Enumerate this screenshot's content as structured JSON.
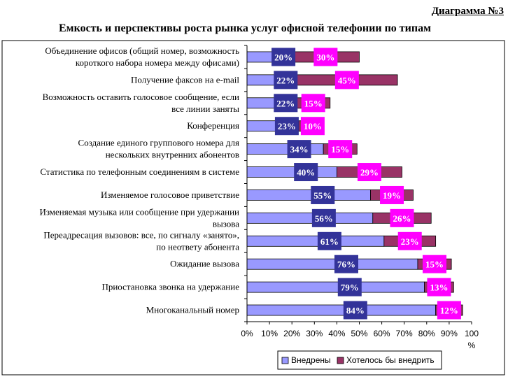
{
  "header": {
    "chart_number": "Диаграмма №3",
    "title": "Емкость и перспективы роста рынка услуг офисной телефонии по типам"
  },
  "chart_data": {
    "type": "bar",
    "orientation": "horizontal",
    "stacked": true,
    "categories": [
      "Объединение офисов (общий номер, возможность короткого набора номера между офисами)",
      "Получение факсов на e-mail",
      "Возможность оставить голосовое сообщение, если все линии заняты",
      "Конференция",
      "Создание единого группового номера для нескольких внутренних абонентов",
      "Статистика по телефонным соединениям в системе",
      "Изменяемое голосовое приветствие",
      "Изменяемая музыка или сообщение при удержании вызова",
      "Переадресация вызовов: все, по сигналу «занято», по неответу абонента",
      "Ожидание вызова",
      "Приостановка звонка на удержание",
      "Многоканальный номер"
    ],
    "category_lines": [
      [
        "Объединение офисов (общий номер, возможность",
        "короткого набора номера между офисами)"
      ],
      [
        "Получение факсов на e-mail"
      ],
      [
        "Возможность оставить голосовое сообщение, если",
        "все линии заняты"
      ],
      [
        "Конференция"
      ],
      [
        "Создание единого группового номера для",
        "нескольких внутренних абонентов"
      ],
      [
        "Статистика по телефонным соединениям в системе"
      ],
      [
        "Изменяемое голосовое приветствие"
      ],
      [
        "Изменяемая музыка или сообщение при удержании",
        "вызова"
      ],
      [
        "Переадресация вызовов: все, по сигналу «занято»,",
        "по неответу абонента"
      ],
      [
        "Ожидание вызова"
      ],
      [
        "Приостановка звонка на удержание"
      ],
      [
        "Многоканальный номер"
      ]
    ],
    "series": [
      {
        "name": "Внедрены",
        "color": "#9999ff",
        "values": [
          20,
          22,
          22,
          23,
          34,
          40,
          55,
          56,
          61,
          76,
          79,
          84
        ],
        "label_bg": "#333399",
        "label_color": "#ffffff"
      },
      {
        "name": "Хотелось бы внедрить",
        "color": "#993366",
        "values": [
          30,
          45,
          15,
          10,
          15,
          29,
          19,
          26,
          23,
          15,
          13,
          12
        ],
        "label_bg": "#ff00ff",
        "label_color": "#ffffff"
      }
    ],
    "data_label_suffix": "%",
    "xlim": [
      0,
      100
    ],
    "x_ticks": [
      "0%",
      "10%",
      "20%",
      "30%",
      "40%",
      "50%",
      "60%",
      "70%",
      "80%",
      "90%",
      "100"
    ],
    "x_unit": "%",
    "grid": false,
    "legend_position": "bottom-right"
  }
}
